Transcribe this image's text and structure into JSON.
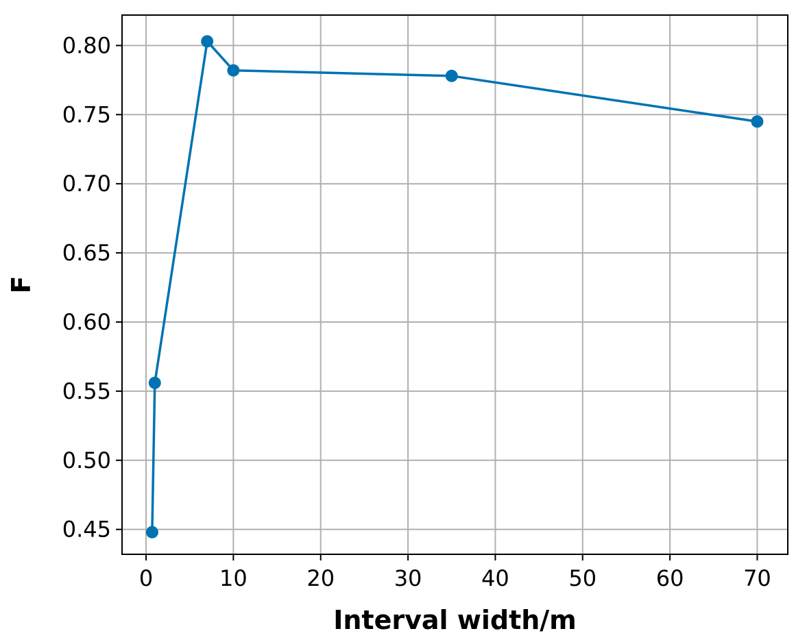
{
  "chart_data": {
    "type": "line",
    "title": "",
    "xlabel": "Interval width/m",
    "ylabel": "F",
    "xlim": [
      -2.75,
      73.5
    ],
    "ylim": [
      0.432,
      0.822
    ],
    "xticks": [
      0,
      10,
      20,
      30,
      40,
      50,
      60,
      70
    ],
    "xtick_labels": [
      "0",
      "10",
      "20",
      "30",
      "40",
      "50",
      "60",
      "70"
    ],
    "yticks": [
      0.45,
      0.5,
      0.55,
      0.6,
      0.65,
      0.7,
      0.75,
      0.8
    ],
    "ytick_labels": [
      "0.45",
      "0.50",
      "0.55",
      "0.60",
      "0.65",
      "0.70",
      "0.75",
      "0.80"
    ],
    "grid": true,
    "legend": "none",
    "series": [
      {
        "color": "#0072b2",
        "marker": "circle",
        "x": [
          0.7,
          1,
          7,
          10,
          35,
          70
        ],
        "y": [
          0.448,
          0.556,
          0.803,
          0.782,
          0.778,
          0.745
        ]
      }
    ]
  }
}
